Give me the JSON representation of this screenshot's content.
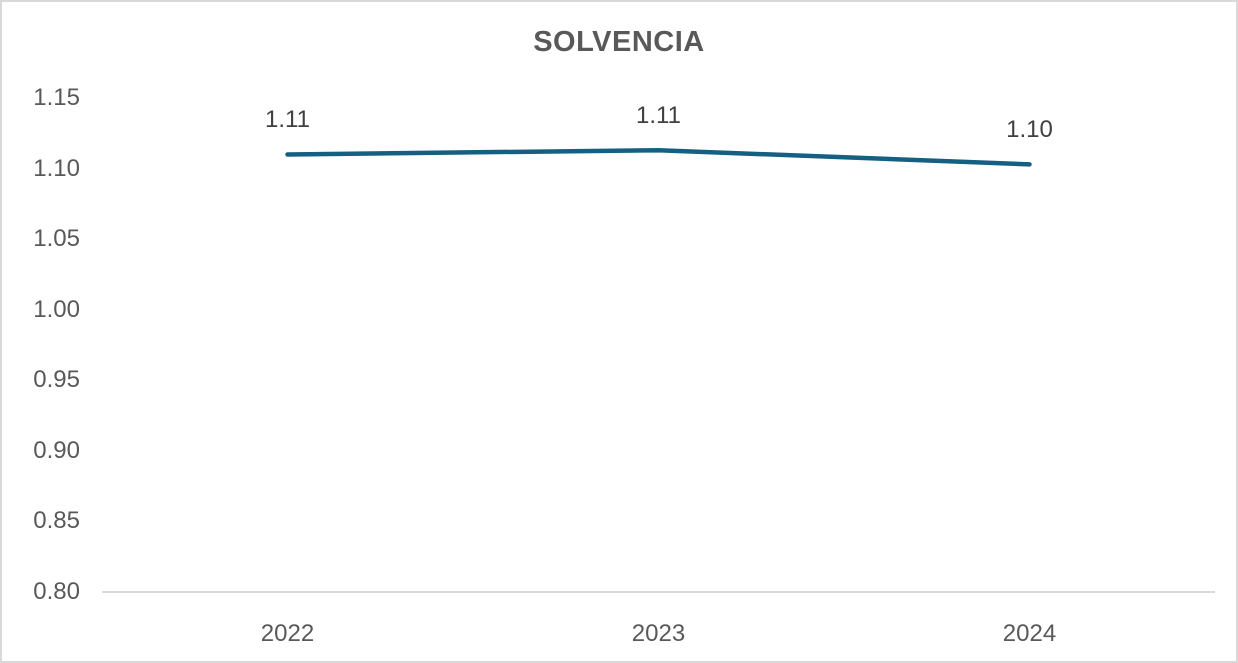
{
  "chart_data": {
    "type": "line",
    "title": "SOLVENCIA",
    "categories": [
      "2022",
      "2023",
      "2024"
    ],
    "values": [
      1.11,
      1.113,
      1.103
    ],
    "data_labels": [
      "1.11",
      "1.11",
      "1.10"
    ],
    "xlabel": "",
    "ylabel": "",
    "ylim": [
      0.8,
      1.15
    ],
    "ytick_step": 0.05,
    "ytick_labels": [
      "1.15",
      "1.10",
      "1.05",
      "1.00",
      "0.95",
      "0.90",
      "0.85",
      "0.80"
    ],
    "grid": false,
    "legend": false,
    "label_position": "above"
  },
  "colors": {
    "line": "#156082",
    "axis_line": "#d9d9d9",
    "tick_text": "#595959",
    "data_label_text": "#404040",
    "title_text": "#595959",
    "background": "#ffffff",
    "frame_border": "#d9d9d9"
  }
}
